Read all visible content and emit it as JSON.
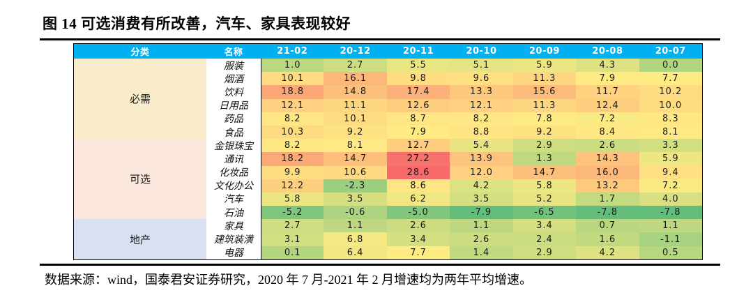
{
  "title": "图 14 可选消费有所改善，汽车、家具表现较好",
  "footer": "数据来源：wind，国泰君安证券研究，2020 年 7 月-2021 年 2 月增速均为两年平均增速。",
  "chart_data": {
    "type": "heatmap",
    "title": "图 14 可选消费有所改善，汽车、家具表现较好",
    "columns": [
      "分类",
      "名称",
      "21-02",
      "20-12",
      "20-11",
      "20-10",
      "20-09",
      "20-08",
      "20-07"
    ],
    "header_bg": "#00B0F0",
    "header_text_color": "#FFFFFF",
    "color_scale": {
      "min": -7.9,
      "mid": 7.7,
      "max": 28.6,
      "min_color": "#63BE7B",
      "mid_color": "#FFEB84",
      "max_color": "#F8696B"
    },
    "groups": [
      {
        "category": "必需",
        "bg": "#F9ECCB",
        "rows": [
          {
            "name": "服装",
            "values": [
              "1.0",
              "2.7",
              "5.5",
              "5.1",
              "5.9",
              "4.3",
              "0.0"
            ]
          },
          {
            "name": "烟酒",
            "values": [
              "10.1",
              "16.1",
              "9.8",
              "9.6",
              "11.3",
              "7.9",
              "7.7"
            ]
          },
          {
            "name": "饮料",
            "values": [
              "18.8",
              "14.8",
              "17.4",
              "13.3",
              "15.6",
              "11.7",
              "10.2"
            ]
          },
          {
            "name": "日用品",
            "values": [
              "12.1",
              "11.1",
              "12.6",
              "12.1",
              "11.3",
              "12.4",
              "10.0"
            ]
          },
          {
            "name": "药品",
            "values": [
              "8.2",
              "10.1",
              "8.7",
              "8.2",
              "7.8",
              "7.2",
              "8.3"
            ]
          },
          {
            "name": "食品",
            "values": [
              "10.3",
              "9.2",
              "7.9",
              "8.8",
              "9.2",
              "8.4",
              "8.1"
            ]
          }
        ]
      },
      {
        "category": "可选",
        "bg": "#FBE6DB",
        "rows": [
          {
            "name": "金银珠宝",
            "values": [
              "8.2",
              "8.1",
              "12.7",
              "5.4",
              "2.9",
              "2.6",
              "3.3"
            ]
          },
          {
            "name": "通讯",
            "values": [
              "18.2",
              "14.7",
              "27.2",
              "13.9",
              "1.3",
              "14.3",
              "5.9"
            ]
          },
          {
            "name": "化妆品",
            "values": [
              "9.9",
              "10.6",
              "28.6",
              "12.0",
              "14.7",
              "16.0",
              "9.4"
            ]
          },
          {
            "name": "文化办公",
            "values": [
              "12.2",
              "-2.3",
              "8.6",
              "4.2",
              "5.8",
              "13.2",
              "7.2"
            ]
          },
          {
            "name": "汽车",
            "values": [
              "5.8",
              "3.5",
              "6.2",
              "3.5",
              "5.2",
              "1.7",
              "4.0"
            ]
          },
          {
            "name": "石油",
            "values": [
              "-5.2",
              "-0.6",
              "-5.0",
              "-7.9",
              "-6.5",
              "-7.8",
              "-7.8"
            ]
          }
        ]
      },
      {
        "category": "地产",
        "bg": "#D8E0F2",
        "rows": [
          {
            "name": "家具",
            "values": [
              "2.7",
              "1.1",
              "2.6",
              "1.1",
              "3.4",
              "0.7",
              "1.1"
            ]
          },
          {
            "name": "建筑装潢",
            "values": [
              "3.1",
              "6.8",
              "3.4",
              "2.6",
              "2.4",
              "1.6",
              "-1.1"
            ]
          },
          {
            "name": "电器",
            "values": [
              "0.1",
              "6.4",
              "7.7",
              "1.4",
              "2.9",
              "4.2",
              "0.5"
            ]
          }
        ]
      }
    ]
  }
}
